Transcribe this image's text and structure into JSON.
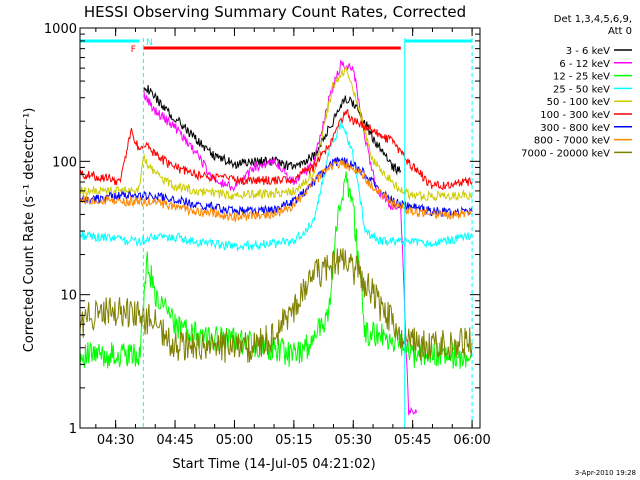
{
  "chart_data": {
    "type": "line",
    "title": "HESSI Observing Summary Count Rates, Corrected",
    "xlabel": "Start Time (14-Jul-05 04:21:02)",
    "ylabel": "Corrected Count Rate (s⁻¹ detector⁻¹)",
    "yscale": "log",
    "ylim": [
      1,
      1000
    ],
    "xlim": [
      "04:21",
      "06:02"
    ],
    "grid": false,
    "legend_position": "right-outside",
    "x_tick_labels": [
      "04:30",
      "04:45",
      "05:00",
      "05:15",
      "05:30",
      "05:45",
      "06:00"
    ],
    "y_tick_labels": [
      "1",
      "10",
      "100",
      "1000"
    ],
    "legend_header": [
      "Det 1,3,4,5,6,9,",
      "Att 0"
    ],
    "footer_date": "3-Apr-2010 19:28",
    "flags": [
      {
        "label": "N",
        "color": "#00ffff",
        "segments": [
          [
            "04:21",
            "04:36"
          ],
          [
            "05:43",
            "06:00"
          ]
        ]
      },
      {
        "label": "F",
        "color": "#ff0000",
        "segments": [
          [
            "04:37",
            "05:42"
          ]
        ]
      }
    ],
    "vertical_markers": [
      {
        "x": "04:37",
        "color": "#00ffff",
        "style": "dashed"
      },
      {
        "x": "05:43",
        "color": "#00ffff",
        "style": "solid"
      },
      {
        "x": "06:00",
        "color": "#00ffff",
        "style": "dashed"
      }
    ],
    "series": [
      {
        "name": "3 - 6 keV",
        "color": "#000000",
        "x": [
          "04:37",
          "04:40",
          "04:45",
          "04:50",
          "04:55",
          "05:00",
          "05:05",
          "05:10",
          "05:15",
          "05:20",
          "05:25",
          "05:28",
          "05:31",
          "05:35",
          "05:40",
          "05:42"
        ],
        "y": [
          380,
          300,
          210,
          150,
          110,
          95,
          100,
          100,
          90,
          110,
          200,
          300,
          250,
          150,
          90,
          85
        ]
      },
      {
        "name": "6 - 12 keV",
        "color": "#ff00ff",
        "x": [
          "04:37",
          "04:40",
          "04:45",
          "04:50",
          "04:55",
          "05:00",
          "05:05",
          "05:10",
          "05:15",
          "05:20",
          "05:24",
          "05:27",
          "05:30",
          "05:33",
          "05:36",
          "05:40",
          "05:42",
          "05:44",
          "05:46"
        ],
        "y": [
          320,
          240,
          180,
          120,
          70,
          65,
          90,
          100,
          70,
          95,
          300,
          550,
          500,
          150,
          60,
          45,
          45,
          1.3,
          1.3
        ]
      },
      {
        "name": "12 - 25 keV",
        "color": "#00ff00",
        "x": [
          "04:21",
          "04:30",
          "04:36",
          "04:38",
          "04:40",
          "04:45",
          "04:50",
          "05:00",
          "05:10",
          "05:15",
          "05:20",
          "05:24",
          "05:26",
          "05:28",
          "05:30",
          "05:33",
          "05:37",
          "05:42",
          "05:45",
          "05:50",
          "06:00"
        ],
        "y": [
          3.5,
          3.5,
          3.5,
          18,
          10,
          6,
          5,
          4.5,
          4,
          3.5,
          4.5,
          8,
          40,
          70,
          45,
          5,
          5,
          4.2,
          3.5,
          3.5,
          3.5
        ]
      },
      {
        "name": "25 - 50 keV",
        "color": "#00ffff",
        "x": [
          "04:21",
          "04:30",
          "04:36",
          "04:40",
          "04:45",
          "04:50",
          "05:00",
          "05:10",
          "05:15",
          "05:20",
          "05:24",
          "05:27",
          "05:30",
          "05:33",
          "05:37",
          "05:42",
          "05:45",
          "05:50",
          "06:00"
        ],
        "y": [
          28,
          26,
          25,
          27,
          27,
          25,
          23,
          24,
          25,
          35,
          120,
          200,
          110,
          30,
          25,
          25,
          25,
          24,
          28
        ]
      },
      {
        "name": "50 - 100 keV",
        "color": "#cccc00",
        "x": [
          "04:21",
          "04:30",
          "04:36",
          "04:37",
          "04:40",
          "04:45",
          "04:50",
          "05:00",
          "05:10",
          "05:15",
          "05:20",
          "05:25",
          "05:28",
          "05:30",
          "05:35",
          "05:42",
          "05:45",
          "05:50",
          "06:00"
        ],
        "y": [
          60,
          60,
          62,
          105,
          80,
          65,
          60,
          55,
          58,
          60,
          80,
          380,
          500,
          350,
          100,
          60,
          55,
          55,
          56
        ]
      },
      {
        "name": "100 - 300 keV",
        "color": "#ff0000",
        "x": [
          "04:21",
          "04:28",
          "04:31",
          "04:34",
          "04:36",
          "04:38",
          "04:40",
          "04:45",
          "04:50",
          "05:00",
          "05:10",
          "05:15",
          "05:20",
          "05:25",
          "05:28",
          "05:30",
          "05:35",
          "05:40",
          "05:43",
          "05:50",
          "06:00"
        ],
        "y": [
          80,
          75,
          70,
          170,
          120,
          130,
          110,
          90,
          80,
          72,
          72,
          75,
          90,
          150,
          240,
          200,
          170,
          140,
          105,
          65,
          70
        ]
      },
      {
        "name": "300 - 800 keV",
        "color": "#0000ff",
        "x": [
          "04:21",
          "04:30",
          "04:36",
          "04:40",
          "04:45",
          "04:50",
          "05:00",
          "05:10",
          "05:15",
          "05:20",
          "05:25",
          "05:28",
          "05:32",
          "05:36",
          "05:40",
          "05:45",
          "05:50",
          "06:00"
        ],
        "y": [
          50,
          55,
          55,
          55,
          52,
          48,
          42,
          43,
          50,
          70,
          100,
          100,
          85,
          65,
          50,
          45,
          42,
          42
        ]
      },
      {
        "name": "800 - 7000 keV",
        "color": "#ff8800",
        "x": [
          "04:21",
          "04:30",
          "04:36",
          "04:40",
          "04:45",
          "04:50",
          "05:00",
          "05:10",
          "05:15",
          "05:20",
          "05:25",
          "05:28",
          "05:32",
          "05:36",
          "05:40",
          "05:45",
          "05:50",
          "06:00"
        ],
        "y": [
          52,
          50,
          50,
          50,
          45,
          42,
          38,
          40,
          47,
          70,
          95,
          95,
          80,
          60,
          48,
          42,
          40,
          40
        ]
      },
      {
        "name": "7000 - 20000 keV",
        "color": "#808000",
        "x": [
          "04:21",
          "04:24",
          "04:30",
          "04:35",
          "04:37",
          "04:40",
          "04:45",
          "04:50",
          "05:00",
          "05:05",
          "05:10",
          "05:15",
          "05:20",
          "05:25",
          "05:28",
          "05:31",
          "05:35",
          "05:40",
          "05:43",
          "05:50",
          "06:00"
        ],
        "y": [
          6,
          7,
          7.5,
          7,
          6.5,
          6.5,
          4,
          4,
          4,
          4,
          5,
          8,
          14,
          17,
          17,
          15,
          10,
          6,
          4.5,
          4,
          4.5
        ]
      }
    ]
  }
}
